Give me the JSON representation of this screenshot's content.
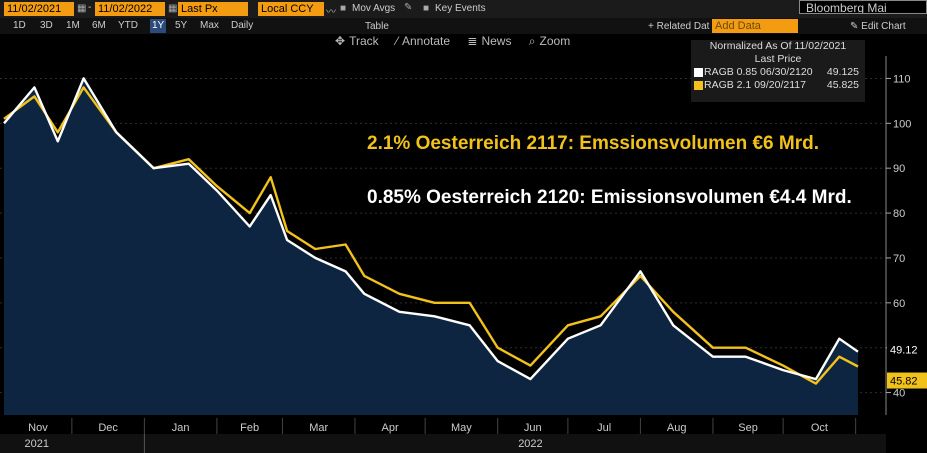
{
  "toolbar": {
    "start_date": "11/02/2021",
    "end_date": "11/02/2022",
    "field": "Last Px",
    "currency": "Local CCY",
    "mov_avgs": "Mov Avgs",
    "key_events": "Key Events",
    "brand": "Bloomberg Mai",
    "related_data": "+ Related Dat",
    "add_data_placeholder": "Add Data",
    "edit_chart": "Edit Chart",
    "table": "Table"
  },
  "periods": [
    "1D",
    "3D",
    "1M",
    "6M",
    "YTD",
    "1Y",
    "5Y",
    "Max",
    "Daily"
  ],
  "active_period": "1Y",
  "tools": {
    "track": "Track",
    "annotate": "Annotate",
    "news": "News",
    "zoom": "Zoom"
  },
  "legend": {
    "header": "Normalized As Of 11/02/2021",
    "subheader": "Last Price",
    "entries": [
      {
        "label": "RAGB 0.85 06/30/2120",
        "value": "49.125",
        "color": "#ffffff"
      },
      {
        "label": "RAGB 2.1 09/20/2117",
        "value": "45.825",
        "color": "#f1c21b"
      }
    ]
  },
  "annotations": [
    {
      "text": "2.1% Oesterreich 2117: Emssionsvolumen €6 Mrd.",
      "color": "#f1c21b"
    },
    {
      "text": "0.85% Oesterreich 2120: Emissionsvolumen €4.4 Mrd.",
      "color": "#ffffff"
    }
  ],
  "chart_data": {
    "type": "line",
    "ylim": [
      35,
      115
    ],
    "yticks": [
      40,
      50,
      60,
      70,
      80,
      90,
      100,
      110
    ],
    "month_labels": [
      "Nov",
      "Dec",
      "Jan",
      "Feb",
      "Mar",
      "Apr",
      "May",
      "Jun",
      "Jul",
      "Aug",
      "Sep",
      "Oct"
    ],
    "year_labels": [
      "2021",
      "2022"
    ],
    "last_labels": [
      "49.12",
      "45.82"
    ],
    "x": [
      "2021-11-02",
      "2021-11-15",
      "2021-11-25",
      "2021-12-06",
      "2021-12-20",
      "2022-01-05",
      "2022-01-20",
      "2022-02-01",
      "2022-02-15",
      "2022-02-24",
      "2022-03-03",
      "2022-03-15",
      "2022-03-28",
      "2022-04-05",
      "2022-04-20",
      "2022-05-05",
      "2022-05-20",
      "2022-06-01",
      "2022-06-15",
      "2022-07-01",
      "2022-07-15",
      "2022-08-01",
      "2022-08-15",
      "2022-09-01",
      "2022-09-15",
      "2022-10-01",
      "2022-10-15",
      "2022-10-25",
      "2022-11-02"
    ],
    "series": [
      {
        "name": "RAGB 0.85 06/30/2120",
        "color": "#ffffff",
        "values": [
          100,
          108,
          96,
          110,
          98,
          90,
          91,
          85,
          77,
          84,
          74,
          70,
          67,
          62,
          58,
          57,
          55,
          47,
          43,
          52,
          55,
          67,
          55,
          48,
          48,
          45,
          43,
          52,
          49.1
        ]
      },
      {
        "name": "RAGB 2.1 09/20/2117",
        "color": "#f1c21b",
        "values": [
          101,
          106,
          98,
          108,
          98,
          90,
          92,
          86,
          80,
          88,
          76,
          72,
          73,
          66,
          62,
          60,
          60,
          50,
          46,
          55,
          57,
          66,
          58,
          50,
          50,
          46,
          42,
          48,
          45.8
        ]
      }
    ]
  }
}
